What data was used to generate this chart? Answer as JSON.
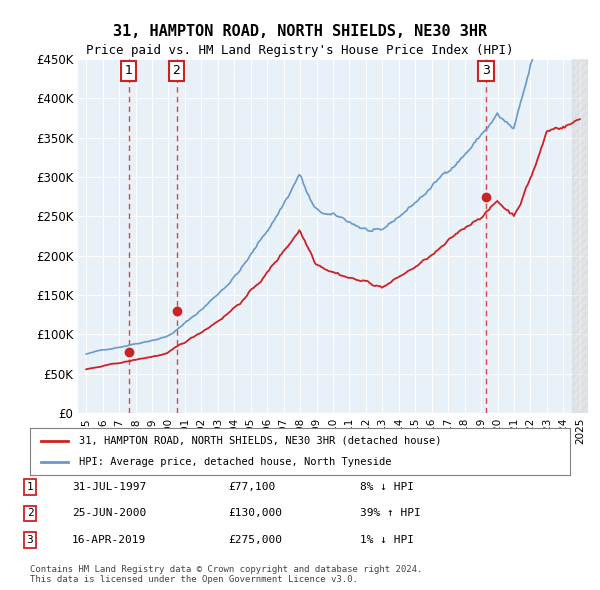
{
  "title": "31, HAMPTON ROAD, NORTH SHIELDS, NE30 3HR",
  "subtitle": "Price paid vs. HM Land Registry's House Price Index (HPI)",
  "sale_dates_num": [
    1997.58,
    2000.49,
    2019.29
  ],
  "sale_prices": [
    77100,
    130000,
    275000
  ],
  "sale_labels": [
    "1",
    "2",
    "3"
  ],
  "legend_red": "31, HAMPTON ROAD, NORTH SHIELDS, NE30 3HR (detached house)",
  "legend_blue": "HPI: Average price, detached house, North Tyneside",
  "table_rows": [
    [
      "1",
      "31-JUL-1997",
      "£77,100",
      "8% ↓ HPI"
    ],
    [
      "2",
      "25-JUN-2000",
      "£130,000",
      "39% ↑ HPI"
    ],
    [
      "3",
      "16-APR-2019",
      "£275,000",
      "1% ↓ HPI"
    ]
  ],
  "footer": "Contains HM Land Registry data © Crown copyright and database right 2024.\nThis data is licensed under the Open Government Licence v3.0.",
  "ylim": [
    0,
    450000
  ],
  "xlim": [
    1994.5,
    2025.5
  ],
  "hpi_color": "#6699cc",
  "property_color": "#cc2222",
  "bg_chart": "#e8f0f8",
  "bg_figure": "#ffffff",
  "grid_color": "#ffffff",
  "sale_marker_color": "#cc2222",
  "dashed_color": "#cc2222"
}
